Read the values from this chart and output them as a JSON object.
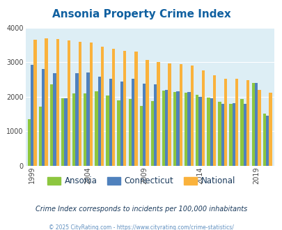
{
  "title": "Ansonia Property Crime Index",
  "title_color": "#1060a0",
  "years": [
    1999,
    2000,
    2001,
    2002,
    2003,
    2004,
    2005,
    2006,
    2007,
    2008,
    2009,
    2010,
    2011,
    2012,
    2013,
    2014,
    2015,
    2016,
    2017,
    2018,
    2019,
    2020
  ],
  "ansonia": [
    1340,
    1700,
    2350,
    1960,
    2100,
    2090,
    2150,
    2030,
    1900,
    1930,
    1730,
    1870,
    2170,
    2140,
    2110,
    2060,
    1970,
    1860,
    1800,
    1940,
    2390,
    1510
  ],
  "connecticut": [
    2920,
    2790,
    2680,
    1960,
    2680,
    2700,
    2580,
    2520,
    2430,
    2510,
    2370,
    2360,
    2190,
    2160,
    2130,
    2000,
    1960,
    1800,
    1810,
    1790,
    2390,
    1440
  ],
  "national": [
    3650,
    3680,
    3660,
    3620,
    3590,
    3560,
    3450,
    3380,
    3320,
    3300,
    3060,
    3000,
    2960,
    2940,
    2900,
    2760,
    2620,
    2520,
    2510,
    2480,
    2200,
    2110
  ],
  "ansonia_color": "#8dc63f",
  "connecticut_color": "#4f81bd",
  "national_color": "#fab23c",
  "plot_bg": "#ddeef5",
  "ylim": [
    0,
    4000
  ],
  "yticks": [
    0,
    1000,
    2000,
    3000,
    4000
  ],
  "xlabel_tick_years": [
    1999,
    2004,
    2009,
    2014,
    2019
  ],
  "subtitle": "Crime Index corresponds to incidents per 100,000 inhabitants",
  "subtitle_color": "#1a3a5c",
  "footer": "© 2025 CityRating.com - https://www.cityrating.com/crime-statistics/",
  "footer_color": "#6090c0",
  "legend_labels": [
    "Ansonia",
    "Connecticut",
    "National"
  ],
  "bar_width": 0.27
}
